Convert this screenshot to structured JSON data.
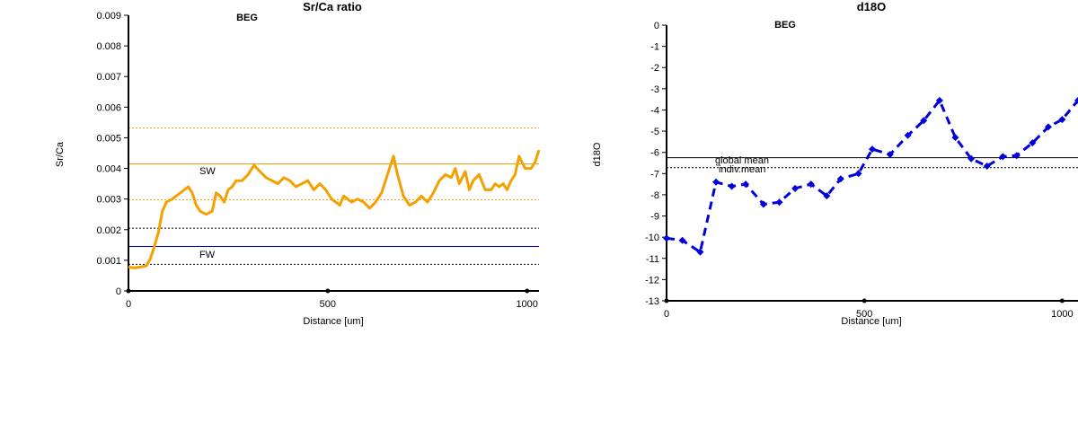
{
  "charts": [
    {
      "id": "srca",
      "title": "Sr/Ca ratio",
      "subtitle": "BEG",
      "xlabel": "Distance [um]",
      "ylabel": "Sr/Ca",
      "xlim": [
        0,
        1030
      ],
      "ylim": [
        0,
        0.009
      ],
      "xticks": [
        0,
        500,
        1000
      ],
      "yticks": [
        0,
        0.001,
        0.002,
        0.003,
        0.004,
        0.005,
        0.006,
        0.007,
        0.008,
        0.009
      ],
      "ytick_labels": [
        "0",
        "0.001",
        "0.002",
        "0.003",
        "0.004",
        "0.005",
        "0.006",
        "0.007",
        "0.008",
        "0.009"
      ],
      "colors": {
        "series": "#f5a000",
        "fw_line": "#0000cc",
        "ref": "#000000"
      },
      "annotations": {
        "sw": "SW",
        "fw": "FW"
      },
      "ref_lines": [
        {
          "y": 0.00415,
          "style": "solid",
          "color": "#f5a000"
        },
        {
          "y": 0.00532,
          "style": "dotted",
          "color": "#f5a000"
        },
        {
          "y": 0.00298,
          "style": "dotted",
          "color": "#f5a000"
        },
        {
          "y": 0.00145,
          "style": "solid",
          "color": "#0000cc"
        },
        {
          "y": 0.00205,
          "style": "dotted",
          "color": "#000000"
        },
        {
          "y": 0.00087,
          "style": "dotted",
          "color": "#000000"
        }
      ],
      "chart_data": {
        "type": "line",
        "x": [
          0,
          15,
          30,
          45,
          55,
          65,
          75,
          85,
          95,
          110,
          125,
          140,
          150,
          160,
          170,
          180,
          195,
          210,
          220,
          230,
          240,
          250,
          260,
          270,
          285,
          300,
          315,
          330,
          345,
          360,
          375,
          390,
          405,
          420,
          435,
          450,
          465,
          480,
          495,
          510,
          520,
          530,
          540,
          550,
          560,
          575,
          590,
          605,
          620,
          635,
          645,
          655,
          665,
          675,
          690,
          705,
          720,
          735,
          750,
          765,
          780,
          795,
          810,
          820,
          830,
          845,
          855,
          865,
          880,
          895,
          910,
          920,
          930,
          940,
          950,
          960,
          970,
          980,
          995,
          1010,
          1020,
          1030
        ],
        "y": [
          0.00078,
          0.00075,
          0.00078,
          0.00082,
          0.00105,
          0.00145,
          0.0019,
          0.0026,
          0.0029,
          0.003,
          0.00315,
          0.0033,
          0.0034,
          0.0032,
          0.0028,
          0.0026,
          0.0025,
          0.0026,
          0.0032,
          0.0031,
          0.0029,
          0.0033,
          0.0034,
          0.0036,
          0.0036,
          0.0038,
          0.0041,
          0.0039,
          0.0037,
          0.0036,
          0.0035,
          0.0037,
          0.0036,
          0.0034,
          0.0035,
          0.0036,
          0.0033,
          0.0035,
          0.0033,
          0.003,
          0.0029,
          0.0028,
          0.0031,
          0.003,
          0.0029,
          0.003,
          0.0029,
          0.0027,
          0.0029,
          0.0032,
          0.0036,
          0.004,
          0.0044,
          0.0038,
          0.0031,
          0.0028,
          0.0029,
          0.0031,
          0.0029,
          0.0032,
          0.0036,
          0.0038,
          0.0037,
          0.004,
          0.0035,
          0.0039,
          0.0033,
          0.0036,
          0.0038,
          0.0033,
          0.0033,
          0.0035,
          0.0034,
          0.0035,
          0.0033,
          0.0036,
          0.0038,
          0.0044,
          0.004,
          0.004,
          0.0042,
          0.0046
        ]
      }
    },
    {
      "id": "d18o",
      "title": "d18O",
      "subtitle": "BEG",
      "xlabel": "Distance [um]",
      "ylabel": "d18O",
      "xlim": [
        0,
        1040
      ],
      "ylim": [
        -13,
        0
      ],
      "xticks": [
        0,
        500,
        1000
      ],
      "yticks": [
        0,
        -1,
        -2,
        -3,
        -4,
        -5,
        -6,
        -7,
        -8,
        -9,
        -10,
        -11,
        -12,
        -13
      ],
      "ytick_labels": [
        "0",
        "-1",
        "-2",
        "-3",
        "-4",
        "-5",
        "-6",
        "-7",
        "-8",
        "-9",
        "-10",
        "-11",
        "-12",
        "-13"
      ],
      "colors": {
        "series": "#0000dd",
        "ref": "#000000"
      },
      "annotations": {
        "global_mean": "global mean",
        "indiv_mean": "indiv.mean"
      },
      "ref_lines": [
        {
          "y": -6.25,
          "style": "solid",
          "color": "#000000"
        },
        {
          "y": -6.72,
          "style": "dotted",
          "color": "#000000"
        }
      ],
      "chart_data": {
        "type": "line",
        "x": [
          0,
          40,
          85,
          125,
          165,
          200,
          245,
          285,
          325,
          365,
          405,
          440,
          485,
          520,
          565,
          610,
          650,
          690,
          730,
          770,
          810,
          850,
          885,
          925,
          965,
          1000,
          1040
        ],
        "y": [
          -10.05,
          -10.15,
          -10.7,
          -7.4,
          -7.6,
          -7.5,
          -8.45,
          -8.35,
          -7.7,
          -7.5,
          -8.05,
          -7.25,
          -7.0,
          -5.85,
          -6.1,
          -5.2,
          -4.5,
          -3.55,
          -5.3,
          -6.3,
          -6.65,
          -6.2,
          -6.15,
          -5.55,
          -4.8,
          -4.45,
          -3.55
        ]
      }
    }
  ]
}
